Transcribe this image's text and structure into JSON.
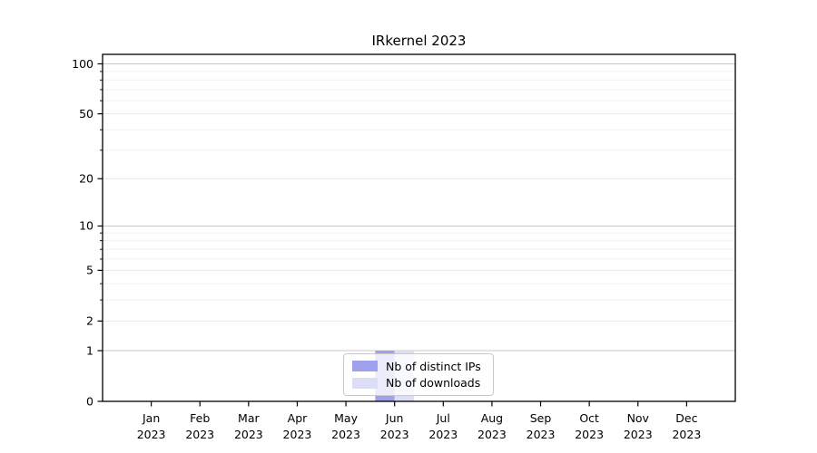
{
  "chart_data": {
    "type": "bar",
    "title": "IRkernel 2023",
    "categories": [
      "Jan",
      "Feb",
      "Mar",
      "Apr",
      "May",
      "Jun",
      "Jul",
      "Aug",
      "Sep",
      "Oct",
      "Nov",
      "Dec"
    ],
    "category_year": "2023",
    "series": [
      {
        "name": "Nb of distinct IPs",
        "color": "#9fa1ee",
        "values": [
          0,
          0,
          0,
          0,
          0,
          1,
          0,
          0,
          0,
          0,
          0,
          0
        ]
      },
      {
        "name": "Nb of downloads",
        "color": "#dcdef7",
        "values": [
          0,
          0,
          0,
          0,
          0,
          1,
          0,
          0,
          0,
          0,
          0,
          0
        ]
      }
    ],
    "xlabel": "",
    "ylabel": "",
    "y_axis": {
      "scale": "log1p",
      "tick_labels": [
        "0",
        "1",
        "2",
        "5",
        "10",
        "20",
        "50",
        "100"
      ],
      "ticks": [
        0,
        1,
        2,
        5,
        10,
        20,
        50,
        100
      ],
      "minor_ticks": [
        3,
        4,
        6,
        7,
        8,
        9,
        30,
        40,
        60,
        70,
        80,
        90
      ],
      "ylim": [
        0,
        114
      ]
    },
    "grid": true,
    "legend_position": "lower center",
    "colors": {
      "background": "#ffffff",
      "axis": "#000000",
      "major_grid": "#c9c9c9",
      "mid_grid": "#e9e9e9",
      "minor_grid": "#f1f1f1",
      "text": "#000000"
    }
  }
}
